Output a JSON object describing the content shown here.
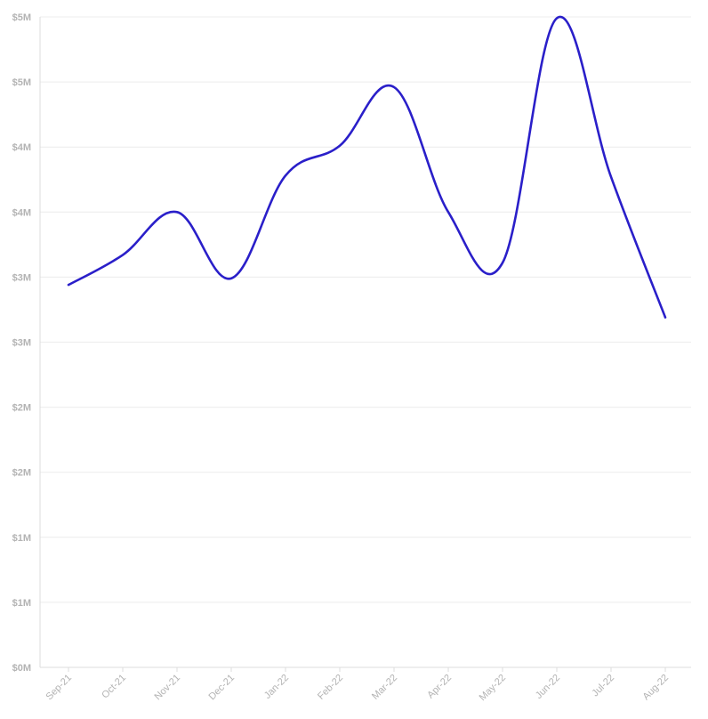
{
  "chart_data": {
    "type": "line",
    "categories": [
      "Sep-21",
      "Oct-21",
      "Nov-21",
      "Dec-21",
      "Jan-22",
      "Feb-22",
      "Mar-22",
      "Apr-22",
      "May-22",
      "Jun-22",
      "Jul-22",
      "Aug-22"
    ],
    "values": [
      2.94,
      3.17,
      3.5,
      2.99,
      3.78,
      4.01,
      4.46,
      3.5,
      3.11,
      4.99,
      3.77,
      2.69
    ],
    "y_tick_values": [
      0,
      0.5,
      1.0,
      1.5,
      2.0,
      2.5,
      3.0,
      3.5,
      4.0,
      4.5,
      5.0
    ],
    "y_tick_labels": [
      "$0M",
      "$1M",
      "$1M",
      "$2M",
      "$2M",
      "$3M",
      "$3M",
      "$4M",
      "$4M",
      "$5M",
      "$5M"
    ],
    "ylim": [
      0,
      5
    ],
    "grid": true,
    "line_color": "#2a1fc9"
  }
}
